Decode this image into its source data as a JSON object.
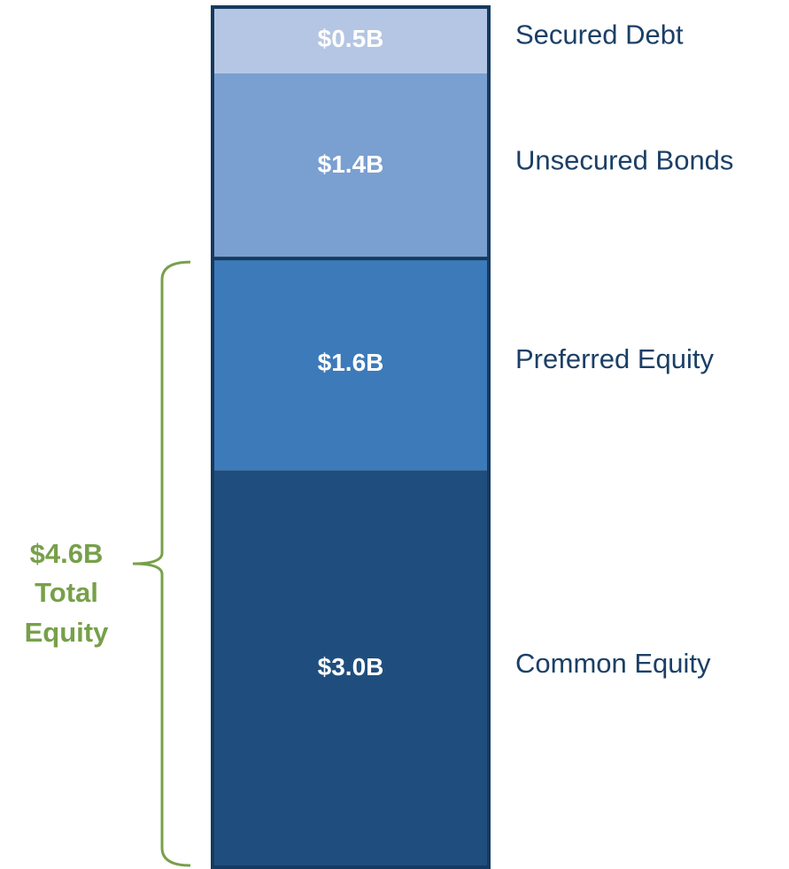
{
  "chart_data": {
    "type": "stacked-column",
    "ylim": [
      0,
      6.5
    ],
    "series": [
      {
        "name": "Common Equity",
        "color": "#1f4e7e",
        "values": [
          3.0
        ],
        "value_labels": [
          "$3.0B"
        ]
      },
      {
        "name": "Preferred Equity",
        "color": "#3c7aba",
        "values": [
          1.6
        ],
        "value_labels": [
          "$1.6B"
        ]
      },
      {
        "name": "Unsecured Bonds",
        "color": "#7a9fd1",
        "values": [
          1.4
        ],
        "value_labels": [
          "$1.4B"
        ]
      },
      {
        "name": "Secured Debt",
        "color": "#b4c6e3",
        "values": [
          0.5
        ],
        "value_labels": [
          "$0.5B"
        ]
      }
    ],
    "annotation": {
      "value": 4.6,
      "label": "$4.6B",
      "text": [
        "Total",
        "Equity"
      ]
    }
  }
}
